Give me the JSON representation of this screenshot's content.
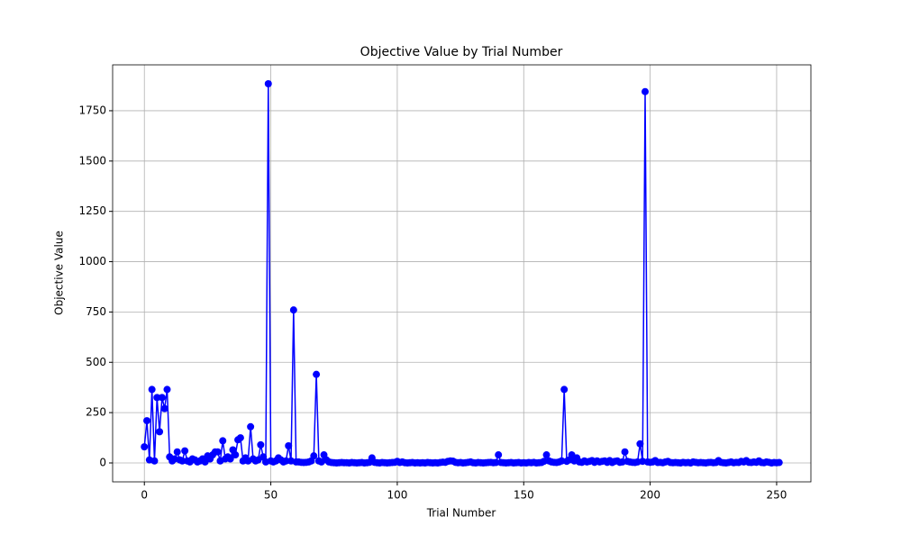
{
  "chart_data": {
    "type": "line",
    "title": "Objective Value by Trial Number",
    "xlabel": "Trial Number",
    "ylabel": "Objective Value",
    "x": [
      0,
      1,
      2,
      3,
      4,
      5,
      6,
      7,
      8,
      9,
      10,
      11,
      12,
      13,
      14,
      15,
      16,
      17,
      18,
      19,
      20,
      21,
      22,
      23,
      24,
      25,
      26,
      27,
      28,
      29,
      30,
      31,
      32,
      33,
      34,
      35,
      36,
      37,
      38,
      39,
      40,
      41,
      42,
      43,
      44,
      45,
      46,
      47,
      48,
      49,
      50,
      51,
      52,
      53,
      54,
      55,
      56,
      57,
      58,
      59,
      60,
      61,
      62,
      63,
      64,
      65,
      66,
      67,
      68,
      69,
      70,
      71,
      72,
      73,
      74,
      75,
      76,
      77,
      78,
      79,
      80,
      81,
      82,
      83,
      84,
      85,
      86,
      87,
      88,
      89,
      90,
      91,
      92,
      93,
      94,
      95,
      96,
      97,
      98,
      99,
      100,
      101,
      102,
      103,
      104,
      105,
      106,
      107,
      108,
      109,
      110,
      111,
      112,
      113,
      114,
      115,
      116,
      117,
      118,
      119,
      120,
      121,
      122,
      123,
      124,
      125,
      126,
      127,
      128,
      129,
      130,
      131,
      132,
      133,
      134,
      135,
      136,
      137,
      138,
      139,
      140,
      141,
      142,
      143,
      144,
      145,
      146,
      147,
      148,
      149,
      150,
      151,
      152,
      153,
      154,
      155,
      156,
      157,
      158,
      159,
      160,
      161,
      162,
      163,
      164,
      165,
      166,
      167,
      168,
      169,
      170,
      171,
      172,
      173,
      174,
      175,
      176,
      177,
      178,
      179,
      180,
      181,
      182,
      183,
      184,
      185,
      186,
      187,
      188,
      189,
      190,
      191,
      192,
      193,
      194,
      195,
      196,
      197,
      198,
      199,
      200,
      201,
      202,
      203,
      204,
      205,
      206,
      207,
      208,
      209,
      210,
      211,
      212,
      213,
      214,
      215,
      216,
      217,
      218,
      219,
      220,
      221,
      222,
      223,
      224,
      225,
      226,
      227,
      228,
      229,
      230,
      231,
      232,
      233,
      234,
      235,
      236,
      237,
      238,
      239,
      240,
      241,
      242,
      243,
      244,
      245,
      246,
      247,
      248,
      249,
      250,
      251
    ],
    "series": [
      {
        "color": "#0000ff",
        "values": [
          80,
          210,
          15,
          365,
          10,
          325,
          155,
          325,
          270,
          365,
          30,
          10,
          20,
          55,
          15,
          10,
          60,
          10,
          5,
          20,
          15,
          5,
          10,
          20,
          5,
          35,
          20,
          40,
          55,
          55,
          10,
          110,
          20,
          30,
          20,
          65,
          40,
          115,
          125,
          10,
          25,
          10,
          180,
          20,
          10,
          15,
          90,
          30,
          5,
          1884,
          10,
          5,
          10,
          25,
          15,
          5,
          10,
          85,
          10,
          760,
          5,
          5,
          3,
          2,
          3,
          5,
          10,
          35,
          440,
          10,
          5,
          40,
          15,
          5,
          2,
          1,
          0,
          1,
          2,
          1,
          1,
          0,
          2,
          1,
          0,
          1,
          2,
          0,
          1,
          3,
          25,
          3,
          1,
          0,
          2,
          1,
          0,
          1,
          2,
          3,
          8,
          2,
          5,
          1,
          0,
          1,
          2,
          0,
          1,
          0,
          1,
          0,
          2,
          1,
          0,
          1,
          0,
          2,
          4,
          3,
          8,
          10,
          9,
          3,
          1,
          2,
          0,
          1,
          3,
          5,
          1,
          0,
          2,
          1,
          0,
          1,
          2,
          3,
          1,
          2,
          40,
          2,
          1,
          0,
          1,
          2,
          0,
          1,
          2,
          0,
          1,
          0,
          2,
          1,
          3,
          0,
          1,
          2,
          8,
          40,
          10,
          5,
          3,
          2,
          5,
          10,
          365,
          8,
          15,
          40,
          10,
          25,
          5,
          3,
          10,
          5,
          8,
          12,
          3,
          10,
          5,
          8,
          10,
          3,
          12,
          2,
          8,
          10,
          3,
          5,
          55,
          8,
          5,
          3,
          2,
          5,
          95,
          8,
          1845,
          5,
          3,
          5,
          12,
          2,
          3,
          1,
          5,
          8,
          2,
          1,
          2,
          1,
          0,
          3,
          1,
          2,
          0,
          5,
          3,
          1,
          2,
          1,
          0,
          2,
          3,
          1,
          2,
          12,
          3,
          1,
          0,
          2,
          5,
          1,
          3,
          2,
          8,
          5,
          12,
          3,
          2,
          5,
          3,
          10,
          2,
          1,
          5,
          3,
          0,
          2,
          1,
          2
        ]
      }
    ],
    "xlim": [
      -12.55,
      263.55
    ],
    "xticks": [
      0,
      50,
      100,
      150,
      200,
      250
    ],
    "ylim": [
      -94,
      1978
    ],
    "yticks": [
      0,
      250,
      500,
      750,
      1000,
      1250,
      1500,
      1750
    ],
    "grid": true
  }
}
